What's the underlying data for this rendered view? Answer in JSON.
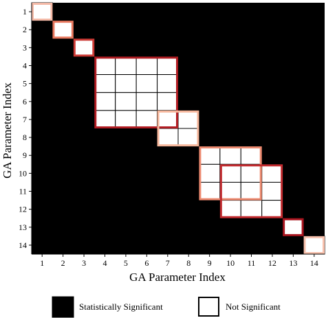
{
  "chart_data": {
    "type": "heatmap",
    "title": "",
    "xlabel": "GA Parameter Index",
    "ylabel": "GA Parameter Index",
    "x_categories": [
      "1",
      "2",
      "3",
      "4",
      "5",
      "6",
      "7",
      "8",
      "9",
      "10",
      "11",
      "12",
      "13",
      "14"
    ],
    "y_categories": [
      "1",
      "2",
      "3",
      "4",
      "5",
      "6",
      "7",
      "8",
      "9",
      "10",
      "11",
      "12",
      "13",
      "14"
    ],
    "cell_states": [
      "Statistically Significant",
      "Not Significant"
    ],
    "not_significant_cells": [
      [
        1,
        1
      ],
      [
        2,
        2
      ],
      [
        3,
        3
      ],
      [
        4,
        4
      ],
      [
        4,
        5
      ],
      [
        4,
        6
      ],
      [
        4,
        7
      ],
      [
        5,
        4
      ],
      [
        5,
        5
      ],
      [
        5,
        6
      ],
      [
        5,
        7
      ],
      [
        6,
        4
      ],
      [
        6,
        5
      ],
      [
        6,
        6
      ],
      [
        6,
        7
      ],
      [
        7,
        4
      ],
      [
        7,
        5
      ],
      [
        7,
        6
      ],
      [
        7,
        7
      ],
      [
        7,
        8
      ],
      [
        8,
        7
      ],
      [
        8,
        8
      ],
      [
        9,
        9
      ],
      [
        9,
        10
      ],
      [
        9,
        11
      ],
      [
        10,
        9
      ],
      [
        10,
        10
      ],
      [
        10,
        11
      ],
      [
        10,
        12
      ],
      [
        11,
        9
      ],
      [
        11,
        10
      ],
      [
        11,
        11
      ],
      [
        11,
        12
      ],
      [
        12,
        10
      ],
      [
        12,
        11
      ],
      [
        12,
        12
      ],
      [
        13,
        13
      ],
      [
        14,
        14
      ]
    ],
    "groups": [
      {
        "rows": [
          1,
          1
        ],
        "cols": [
          1,
          1
        ],
        "color": "#f4b9a6"
      },
      {
        "rows": [
          2,
          2
        ],
        "cols": [
          2,
          2
        ],
        "color": "#e8785e"
      },
      {
        "rows": [
          3,
          3
        ],
        "cols": [
          3,
          3
        ],
        "color": "#cc3a35"
      },
      {
        "rows": [
          4,
          7
        ],
        "cols": [
          4,
          7
        ],
        "color": "#b01c22"
      },
      {
        "rows": [
          7,
          8
        ],
        "cols": [
          7,
          8
        ],
        "color": "#f6b79c"
      },
      {
        "rows": [
          9,
          11
        ],
        "cols": [
          9,
          11
        ],
        "color": "#ed8a70"
      },
      {
        "rows": [
          10,
          12
        ],
        "cols": [
          10,
          12
        ],
        "color": "#c22b2f"
      },
      {
        "rows": [
          13,
          13
        ],
        "cols": [
          13,
          13
        ],
        "color": "#a8141e"
      },
      {
        "rows": [
          14,
          14
        ],
        "cols": [
          14,
          14
        ],
        "color": "#f8c1ad"
      }
    ],
    "legend": [
      {
        "label": "Statistically Significant",
        "fill": "#000000"
      },
      {
        "label": "Not Significant",
        "fill": "#ffffff"
      }
    ],
    "legend_position": "bottom",
    "grid": false
  },
  "colors": {
    "significant": "#000000",
    "not_significant": "#ffffff",
    "cell_border": "#000000"
  }
}
